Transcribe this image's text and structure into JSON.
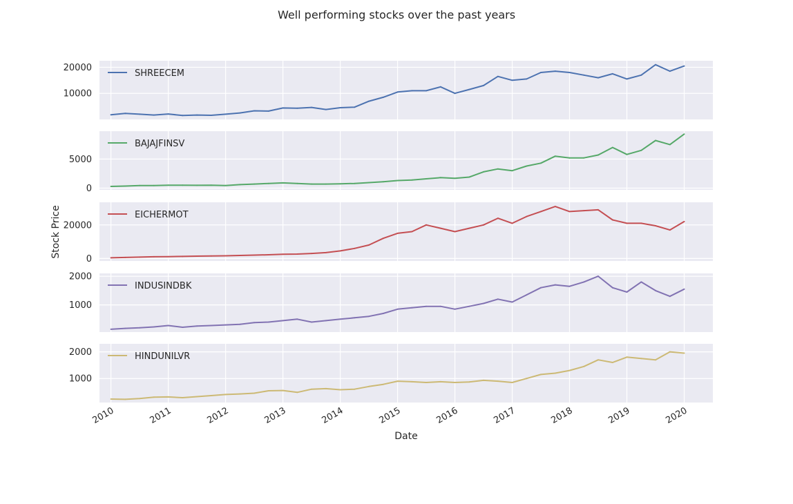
{
  "chart_data": {
    "type": "line",
    "title": "Well performing stocks over the past years",
    "xlabel": "Date",
    "ylabel": "Stock Price",
    "x_ticks": [
      "2010",
      "2011",
      "2012",
      "2013",
      "2014",
      "2015",
      "2016",
      "2017",
      "2018",
      "2019",
      "2020"
    ],
    "xlim": [
      2009.8,
      2020.5
    ],
    "grid": true,
    "legend_position": "upper-left",
    "series": [
      {
        "name": "SHREECEM",
        "color": "#4c72b0",
        "ylim": [
          0,
          22500
        ],
        "yticks": [
          10000,
          20000
        ],
        "x": [
          2010.0,
          2010.25,
          2010.5,
          2010.75,
          2011.0,
          2011.25,
          2011.5,
          2011.75,
          2012.0,
          2012.25,
          2012.5,
          2012.75,
          2013.0,
          2013.25,
          2013.5,
          2013.75,
          2014.0,
          2014.25,
          2014.5,
          2014.75,
          2015.0,
          2015.25,
          2015.5,
          2015.75,
          2016.0,
          2016.25,
          2016.5,
          2016.75,
          2017.0,
          2017.25,
          2017.5,
          2017.75,
          2018.0,
          2018.25,
          2018.5,
          2018.75,
          2019.0,
          2019.25,
          2019.5,
          2019.75,
          2020.0
        ],
        "y": [
          1800,
          2300,
          2000,
          1700,
          2100,
          1500,
          1700,
          1600,
          2000,
          2500,
          3300,
          3200,
          4400,
          4300,
          4600,
          3800,
          4500,
          4700,
          7000,
          8500,
          10500,
          11000,
          11000,
          12500,
          10000,
          11500,
          13000,
          16500,
          15000,
          15500,
          18000,
          18500,
          18000,
          17000,
          16000,
          17500,
          15500,
          17000,
          21000,
          18500,
          20500
        ]
      },
      {
        "name": "BAJAJFINSV",
        "color": "#55a868",
        "ylim": [
          -300,
          9800
        ],
        "yticks": [
          0,
          5000
        ],
        "x": [
          2010.0,
          2010.25,
          2010.5,
          2010.75,
          2011.0,
          2011.25,
          2011.5,
          2011.75,
          2012.0,
          2012.25,
          2012.5,
          2012.75,
          2013.0,
          2013.25,
          2013.5,
          2013.75,
          2014.0,
          2014.25,
          2014.5,
          2014.75,
          2015.0,
          2015.25,
          2015.5,
          2015.75,
          2016.0,
          2016.25,
          2016.5,
          2016.75,
          2017.0,
          2017.25,
          2017.5,
          2017.75,
          2018.0,
          2018.25,
          2018.5,
          2018.75,
          2019.0,
          2019.25,
          2019.5,
          2019.75,
          2020.0
        ],
        "y": [
          300,
          350,
          450,
          450,
          500,
          500,
          480,
          500,
          450,
          600,
          700,
          800,
          900,
          800,
          700,
          700,
          750,
          800,
          950,
          1100,
          1300,
          1400,
          1600,
          1800,
          1700,
          1900,
          2800,
          3300,
          3000,
          3800,
          4300,
          5500,
          5200,
          5200,
          5700,
          7000,
          5800,
          6500,
          8200,
          7500,
          9300
        ]
      },
      {
        "name": "EICHERMOT",
        "color": "#c44e52",
        "ylim": [
          -1500,
          33500
        ],
        "yticks": [
          0,
          20000
        ],
        "x": [
          2010.0,
          2010.25,
          2010.5,
          2010.75,
          2011.0,
          2011.25,
          2011.5,
          2011.75,
          2012.0,
          2012.25,
          2012.5,
          2012.75,
          2013.0,
          2013.25,
          2013.5,
          2013.75,
          2014.0,
          2014.25,
          2014.5,
          2014.75,
          2015.0,
          2015.25,
          2015.5,
          2015.75,
          2016.0,
          2016.25,
          2016.5,
          2016.75,
          2017.0,
          2017.25,
          2017.5,
          2017.75,
          2018.0,
          2018.25,
          2018.5,
          2018.75,
          2019.0,
          2019.25,
          2019.5,
          2019.75,
          2020.0
        ],
        "y": [
          400,
          600,
          800,
          1000,
          1100,
          1200,
          1400,
          1500,
          1600,
          1800,
          2000,
          2200,
          2500,
          2600,
          3000,
          3500,
          4500,
          6000,
          8000,
          12000,
          15000,
          16000,
          20000,
          18000,
          16000,
          18000,
          20000,
          24000,
          21000,
          25000,
          28000,
          31000,
          28000,
          28500,
          29000,
          23000,
          21000,
          21000,
          19500,
          17000,
          22000
        ]
      },
      {
        "name": "INDUSINDBK",
        "color": "#8172b2",
        "ylim": [
          50,
          2100
        ],
        "yticks": [
          1000,
          2000
        ],
        "x": [
          2010.0,
          2010.25,
          2010.5,
          2010.75,
          2011.0,
          2011.25,
          2011.5,
          2011.75,
          2012.0,
          2012.25,
          2012.5,
          2012.75,
          2013.0,
          2013.25,
          2013.5,
          2013.75,
          2014.0,
          2014.25,
          2014.5,
          2014.75,
          2015.0,
          2015.25,
          2015.5,
          2015.75,
          2016.0,
          2016.25,
          2016.5,
          2016.75,
          2017.0,
          2017.25,
          2017.5,
          2017.75,
          2018.0,
          2018.25,
          2018.5,
          2018.75,
          2019.0,
          2019.25,
          2019.5,
          2019.75,
          2020.0
        ],
        "y": [
          150,
          180,
          200,
          230,
          280,
          220,
          260,
          280,
          300,
          320,
          380,
          400,
          450,
          500,
          400,
          450,
          500,
          550,
          600,
          700,
          850,
          900,
          950,
          950,
          850,
          950,
          1050,
          1200,
          1100,
          1350,
          1600,
          1700,
          1650,
          1800,
          2000,
          1600,
          1450,
          1800,
          1500,
          1300,
          1550
        ]
      },
      {
        "name": "HINDUNILVR",
        "color": "#ccb974",
        "ylim": [
          100,
          2300
        ],
        "yticks": [
          1000,
          2000
        ],
        "x": [
          2010.0,
          2010.25,
          2010.5,
          2010.75,
          2011.0,
          2011.25,
          2011.5,
          2011.75,
          2012.0,
          2012.25,
          2012.5,
          2012.75,
          2013.0,
          2013.25,
          2013.5,
          2013.75,
          2014.0,
          2014.25,
          2014.5,
          2014.75,
          2015.0,
          2015.25,
          2015.5,
          2015.75,
          2016.0,
          2016.25,
          2016.5,
          2016.75,
          2017.0,
          2017.25,
          2017.5,
          2017.75,
          2018.0,
          2018.25,
          2018.5,
          2018.75,
          2019.0,
          2019.25,
          2019.5,
          2019.75,
          2020.0
        ],
        "y": [
          230,
          220,
          250,
          300,
          310,
          280,
          320,
          360,
          400,
          420,
          450,
          540,
          550,
          480,
          600,
          620,
          580,
          600,
          700,
          780,
          900,
          880,
          850,
          880,
          850,
          870,
          930,
          900,
          850,
          1000,
          1150,
          1200,
          1300,
          1450,
          1700,
          1600,
          1800,
          1750,
          1700,
          2000,
          1950
        ]
      }
    ]
  }
}
